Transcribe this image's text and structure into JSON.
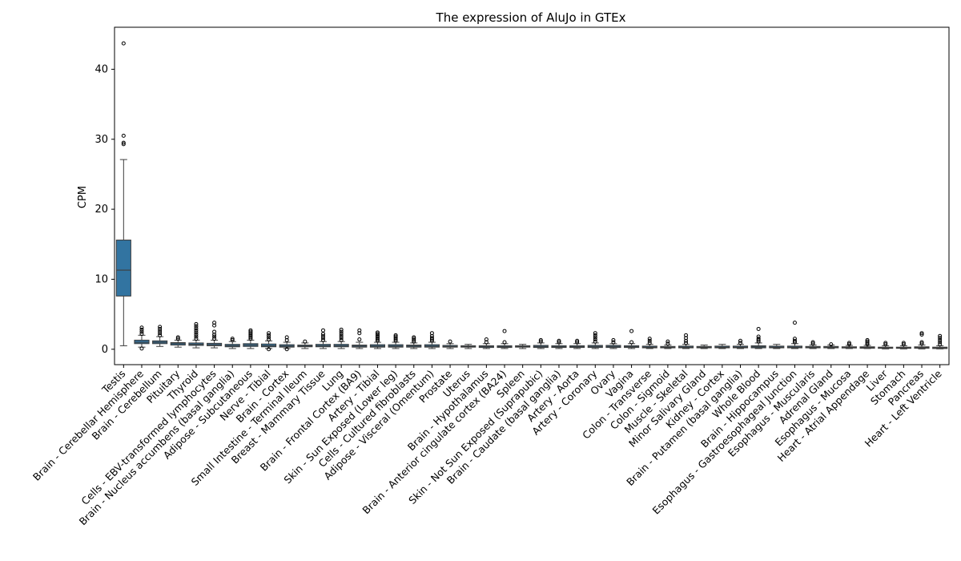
{
  "chart_data": {
    "type": "box",
    "title": "The expression of AluJo in GTEx",
    "xlabel": "",
    "ylabel": "CPM",
    "ylim": [
      -2.2,
      46
    ],
    "yticks": [
      0,
      10,
      20,
      30,
      40
    ],
    "grid": false,
    "box_color": "#3274a1",
    "categories": [
      "Testis",
      "Brain - Cerebellar Hemisphere",
      "Brain - Cerebellum",
      "Pituitary",
      "Thyroid",
      "Cells - EBV-transformed lymphocytes",
      "Brain - Nucleus accumbens (basal ganglia)",
      "Adipose - Subcutaneous",
      "Nerve - Tibial",
      "Brain - Cortex",
      "Small Intestine - Terminal Ileum",
      "Breast - Mammary Tissue",
      "Lung",
      "Brain - Frontal Cortex (BA9)",
      "Artery - Tibial",
      "Skin - Sun Exposed (Lower leg)",
      "Cells - Cultured fibroblasts",
      "Adipose - Visceral (Omentum)",
      "Prostate",
      "Uterus",
      "Brain - Hypothalamus",
      "Brain - Anterior cingulate cortex (BA24)",
      "Spleen",
      "Skin - Not Sun Exposed (Suprapubic)",
      "Brain - Caudate (basal ganglia)",
      "Artery - Aorta",
      "Artery - Coronary",
      "Ovary",
      "Vagina",
      "Colon - Transverse",
      "Colon - Sigmoid",
      "Muscle - Skeletal",
      "Minor Salivary Gland",
      "Kidney - Cortex",
      "Brain - Putamen (basal ganglia)",
      "Whole Blood",
      "Brain - Hippocampus",
      "Esophagus - Gastroesophageal Junction",
      "Esophagus - Muscularis",
      "Adrenal Gland",
      "Esophagus - Mucosa",
      "Heart - Atrial Appendage",
      "Liver",
      "Stomach",
      "Pancreas",
      "Heart - Left Ventricle"
    ],
    "series": [
      {
        "stats": [
          {
            "min": 0.5,
            "q1": 7.6,
            "median": 11.3,
            "q3": 15.6,
            "max": 27.1,
            "outliers": [
              29.3,
              29.5,
              30.5,
              43.7
            ]
          },
          {
            "min": 0.3,
            "q1": 0.8,
            "median": 1.0,
            "q3": 1.3,
            "max": 2.0,
            "outliers": [
              0.1,
              2.2,
              2.5,
              2.8,
              3.1
            ]
          },
          {
            "min": 0.4,
            "q1": 0.8,
            "median": 1.0,
            "q3": 1.2,
            "max": 1.8,
            "outliers": [
              2.0,
              2.3,
              2.6,
              2.9,
              3.2
            ]
          },
          {
            "min": 0.3,
            "q1": 0.6,
            "median": 0.8,
            "q3": 0.95,
            "max": 1.3,
            "outliers": [
              1.5,
              1.7
            ]
          },
          {
            "min": 0.2,
            "q1": 0.55,
            "median": 0.7,
            "q3": 0.9,
            "max": 1.3,
            "outliers": [
              1.5,
              1.8,
              2.1,
              2.4,
              2.7,
              3.0,
              3.3,
              3.6
            ]
          },
          {
            "min": 0.2,
            "q1": 0.5,
            "median": 0.65,
            "q3": 0.85,
            "max": 1.3,
            "outliers": [
              1.5,
              1.8,
              2.1,
              2.5,
              3.4,
              3.8
            ]
          },
          {
            "min": 0.1,
            "q1": 0.35,
            "median": 0.5,
            "q3": 0.7,
            "max": 1.1,
            "outliers": [
              1.3,
              1.5
            ]
          },
          {
            "min": 0.1,
            "q1": 0.4,
            "median": 0.6,
            "q3": 0.8,
            "max": 1.3,
            "outliers": [
              1.5,
              1.7,
              1.9,
              2.1,
              2.3,
              2.5,
              2.7
            ]
          },
          {
            "min": 0.1,
            "q1": 0.35,
            "median": 0.5,
            "q3": 0.75,
            "max": 1.2,
            "outliers": [
              0.0,
              1.4,
              1.7,
              2.0,
              2.3
            ]
          },
          {
            "min": 0.1,
            "q1": 0.3,
            "median": 0.45,
            "q3": 0.65,
            "max": 1.0,
            "outliers": [
              0.0,
              1.3,
              1.7
            ]
          },
          {
            "min": 0.1,
            "q1": 0.35,
            "median": 0.45,
            "q3": 0.6,
            "max": 0.9,
            "outliers": [
              1.1
            ]
          },
          {
            "min": 0.1,
            "q1": 0.35,
            "median": 0.5,
            "q3": 0.7,
            "max": 1.1,
            "outliers": [
              1.3,
              1.6,
              1.9,
              2.2,
              2.7
            ]
          },
          {
            "min": 0.1,
            "q1": 0.35,
            "median": 0.5,
            "q3": 0.7,
            "max": 1.1,
            "outliers": [
              1.3,
              1.6,
              1.9,
              2.2,
              2.5,
              2.8
            ]
          },
          {
            "min": 0.1,
            "q1": 0.3,
            "median": 0.45,
            "q3": 0.6,
            "max": 1.0,
            "outliers": [
              1.4,
              2.3,
              2.7
            ]
          },
          {
            "min": 0.1,
            "q1": 0.3,
            "median": 0.45,
            "q3": 0.65,
            "max": 1.0,
            "outliers": [
              1.2,
              1.4,
              1.6,
              1.8,
              2.0,
              2.2,
              2.4
            ]
          },
          {
            "min": 0.1,
            "q1": 0.3,
            "median": 0.45,
            "q3": 0.65,
            "max": 1.0,
            "outliers": [
              1.2,
              1.4,
              1.6,
              1.8,
              2.0
            ]
          },
          {
            "min": 0.1,
            "q1": 0.3,
            "median": 0.45,
            "q3": 0.6,
            "max": 0.9,
            "outliers": [
              1.1,
              1.3,
              1.5,
              1.7
            ]
          },
          {
            "min": 0.1,
            "q1": 0.3,
            "median": 0.45,
            "q3": 0.65,
            "max": 1.0,
            "outliers": [
              1.2,
              1.4,
              1.6,
              1.9,
              2.3
            ]
          },
          {
            "min": 0.1,
            "q1": 0.3,
            "median": 0.4,
            "q3": 0.55,
            "max": 0.8,
            "outliers": [
              1.1
            ]
          },
          {
            "min": 0.1,
            "q1": 0.3,
            "median": 0.4,
            "q3": 0.5,
            "max": 0.7,
            "outliers": []
          },
          {
            "min": 0.1,
            "q1": 0.25,
            "median": 0.4,
            "q3": 0.5,
            "max": 0.8,
            "outliers": [
              1.0,
              1.4
            ]
          },
          {
            "min": 0.1,
            "q1": 0.25,
            "median": 0.35,
            "q3": 0.5,
            "max": 0.8,
            "outliers": [
              1.0,
              2.6
            ]
          },
          {
            "min": 0.1,
            "q1": 0.3,
            "median": 0.4,
            "q3": 0.5,
            "max": 0.7,
            "outliers": []
          },
          {
            "min": 0.1,
            "q1": 0.25,
            "median": 0.4,
            "q3": 0.55,
            "max": 0.9,
            "outliers": [
              1.1,
              1.3
            ]
          },
          {
            "min": 0.1,
            "q1": 0.25,
            "median": 0.35,
            "q3": 0.5,
            "max": 0.8,
            "outliers": [
              1.0,
              1.2
            ]
          },
          {
            "min": 0.1,
            "q1": 0.25,
            "median": 0.35,
            "q3": 0.5,
            "max": 0.8,
            "outliers": [
              1.0,
              1.2
            ]
          },
          {
            "min": 0.1,
            "q1": 0.25,
            "median": 0.4,
            "q3": 0.55,
            "max": 0.9,
            "outliers": [
              1.1,
              1.4,
              1.7,
              2.0,
              2.3
            ]
          },
          {
            "min": 0.1,
            "q1": 0.25,
            "median": 0.4,
            "q3": 0.55,
            "max": 0.8,
            "outliers": [
              1.0,
              1.3
            ]
          },
          {
            "min": 0.1,
            "q1": 0.25,
            "median": 0.35,
            "q3": 0.5,
            "max": 0.8,
            "outliers": [
              1.0,
              2.6
            ]
          },
          {
            "min": 0.1,
            "q1": 0.2,
            "median": 0.3,
            "q3": 0.45,
            "max": 0.7,
            "outliers": [
              0.9,
              1.2,
              1.5
            ]
          },
          {
            "min": 0.1,
            "q1": 0.2,
            "median": 0.3,
            "q3": 0.4,
            "max": 0.6,
            "outliers": [
              0.8,
              1.1
            ]
          },
          {
            "min": 0.1,
            "q1": 0.2,
            "median": 0.3,
            "q3": 0.45,
            "max": 0.7,
            "outliers": [
              0.9,
              1.2,
              1.6,
              2.0
            ]
          },
          {
            "min": 0.1,
            "q1": 0.2,
            "median": 0.3,
            "q3": 0.4,
            "max": 0.6,
            "outliers": []
          },
          {
            "min": 0.1,
            "q1": 0.2,
            "median": 0.3,
            "q3": 0.45,
            "max": 0.7,
            "outliers": []
          },
          {
            "min": 0.1,
            "q1": 0.2,
            "median": 0.3,
            "q3": 0.45,
            "max": 0.7,
            "outliers": [
              0.9,
              1.2
            ]
          },
          {
            "min": 0.1,
            "q1": 0.2,
            "median": 0.35,
            "q3": 0.5,
            "max": 0.9,
            "outliers": [
              1.1,
              1.3,
              1.5,
              1.8,
              2.9
            ]
          },
          {
            "min": 0.1,
            "q1": 0.2,
            "median": 0.3,
            "q3": 0.45,
            "max": 0.7,
            "outliers": []
          },
          {
            "min": 0.1,
            "q1": 0.2,
            "median": 0.3,
            "q3": 0.45,
            "max": 0.8,
            "outliers": [
              1.0,
              1.2,
              1.5,
              3.8
            ]
          },
          {
            "min": 0.1,
            "q1": 0.2,
            "median": 0.3,
            "q3": 0.4,
            "max": 0.6,
            "outliers": [
              0.8,
              1.0
            ]
          },
          {
            "min": 0.1,
            "q1": 0.2,
            "median": 0.3,
            "q3": 0.4,
            "max": 0.6,
            "outliers": [
              0.7
            ]
          },
          {
            "min": 0.1,
            "q1": 0.2,
            "median": 0.25,
            "q3": 0.35,
            "max": 0.55,
            "outliers": [
              0.7,
              0.9
            ]
          },
          {
            "min": 0.1,
            "q1": 0.15,
            "median": 0.25,
            "q3": 0.35,
            "max": 0.55,
            "outliers": [
              0.7,
              0.9,
              1.1,
              1.3
            ]
          },
          {
            "min": 0.05,
            "q1": 0.15,
            "median": 0.2,
            "q3": 0.3,
            "max": 0.5,
            "outliers": [
              0.7,
              0.9
            ]
          },
          {
            "min": 0.05,
            "q1": 0.15,
            "median": 0.2,
            "q3": 0.3,
            "max": 0.5,
            "outliers": [
              0.7,
              0.9
            ]
          },
          {
            "min": 0.05,
            "q1": 0.15,
            "median": 0.25,
            "q3": 0.35,
            "max": 0.6,
            "outliers": [
              0.8,
              1.0,
              2.1,
              2.3
            ]
          },
          {
            "min": 0.05,
            "q1": 0.1,
            "median": 0.2,
            "q3": 0.3,
            "max": 0.5,
            "outliers": [
              0.7,
              1.0,
              1.3,
              1.6,
              1.9
            ]
          }
        ]
      }
    ]
  }
}
